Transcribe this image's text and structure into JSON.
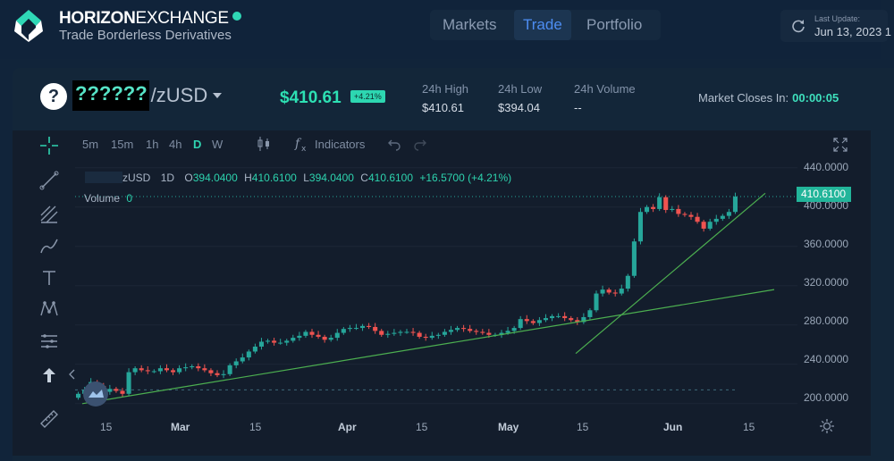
{
  "header": {
    "brand_bold": "HORIZON",
    "brand_light": "EXCHANGE",
    "tagline": "Trade Borderless Derivatives",
    "nav": [
      {
        "label": "Markets",
        "active": false
      },
      {
        "label": "Trade",
        "active": true
      },
      {
        "label": "Portfolio",
        "active": false
      }
    ],
    "last_update_label": "Last Update:",
    "last_update_value": "Jun 13, 2023 1"
  },
  "market": {
    "token_icon": "?",
    "base": "??????",
    "quote": "/zUSD",
    "price": "$410.61",
    "change_pct": "+4.21%",
    "high_label": "24h High",
    "high_value": "$410.61",
    "low_label": "24h Low",
    "low_value": "$394.04",
    "volume_label": "24h Volume",
    "volume_value": "--",
    "close_label": "Market Closes In:",
    "close_value": "00:00:05"
  },
  "chart_toolbar": {
    "timeframes": [
      "5m",
      "15m",
      "1h",
      "4h",
      "D",
      "W"
    ],
    "active_timeframe": "D",
    "indicators_label": "Indicators"
  },
  "legend": {
    "symbol": "zUSD",
    "interval": "1D",
    "open_label": "O",
    "open": "394.0400",
    "high_label": "H",
    "high": "410.6100",
    "low_label": "L",
    "low": "394.0400",
    "close_label": "C",
    "close": "410.6100",
    "change": "+16.5700 (+4.21%)",
    "volume_label": "Volume",
    "volume_value": "0"
  },
  "chart_data": {
    "type": "candlestick",
    "y_ticks": [
      "440.0000",
      "400.0000",
      "360.0000",
      "320.0000",
      "280.0000",
      "240.0000",
      "200.0000"
    ],
    "ylim": [
      188,
      447
    ],
    "last_price_tag": "410.6100",
    "x_ticks": [
      "15",
      "Mar",
      "15",
      "Apr",
      "15",
      "May",
      "15",
      "Jun",
      "15"
    ],
    "x_month_ticks": [
      "Mar",
      "Apr",
      "May",
      "Jun"
    ],
    "candles_close": [
      210,
      214,
      222,
      218,
      212,
      215,
      213,
      210,
      232,
      236,
      234,
      233,
      233,
      236,
      234,
      232,
      236,
      237,
      238,
      236,
      234,
      231,
      229,
      230,
      239,
      243,
      247,
      253,
      258,
      263,
      264,
      262,
      262,
      264,
      267,
      269,
      273,
      270,
      268,
      265,
      267,
      272,
      276,
      277,
      277,
      279,
      278,
      274,
      270,
      271,
      272,
      273,
      273,
      272,
      268,
      267,
      269,
      270,
      273,
      275,
      277,
      276,
      274,
      273,
      272,
      270,
      270,
      272,
      274,
      277,
      286,
      284,
      282,
      285,
      287,
      289,
      289,
      287,
      285,
      283,
      288,
      295,
      312,
      316,
      313,
      312,
      317,
      330,
      365,
      395,
      400,
      398,
      410,
      397,
      398,
      393,
      392,
      390,
      385,
      378,
      385,
      388,
      391,
      395,
      410.61
    ],
    "colors": {
      "up": "#26a69a",
      "down": "#ef5350",
      "trend": "#4caf50"
    }
  }
}
